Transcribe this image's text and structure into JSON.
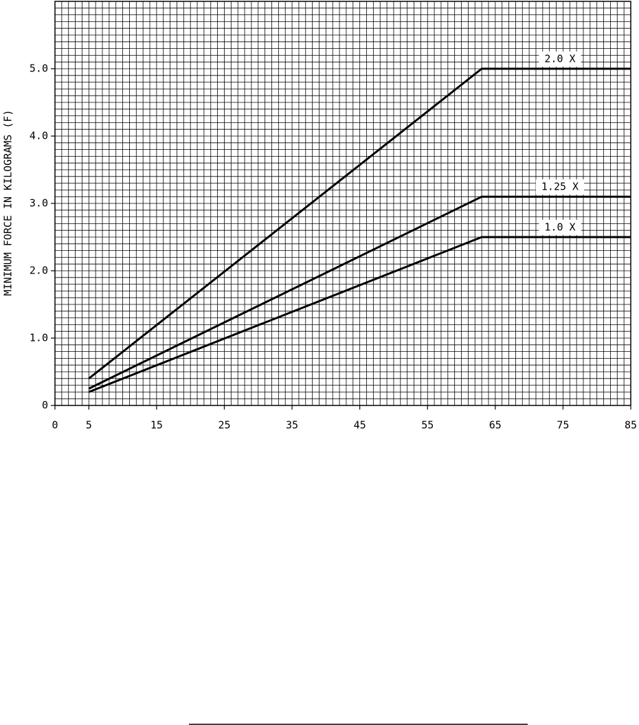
{
  "chart_data": {
    "type": "line",
    "y_label": "MINIMUM FORCE IN KILOGRAMS (F)",
    "x": [
      5,
      63,
      85
    ],
    "series": [
      {
        "name": "2.0 X",
        "color": "#000000",
        "values": [
          0.4,
          5.0,
          5.0
        ]
      },
      {
        "name": "1.25 X",
        "color": "#000000",
        "values": [
          0.25,
          3.1,
          3.1
        ]
      },
      {
        "name": "1.0 X",
        "color": "#000000",
        "values": [
          0.2,
          2.5,
          2.5
        ]
      }
    ],
    "xlim": [
      0,
      85
    ],
    "xticks": [
      0,
      5,
      15,
      25,
      35,
      45,
      55,
      65,
      75,
      85
    ],
    "ylim": [
      0,
      6
    ],
    "yticks": [
      0,
      {
        "value": 1,
        "label": "1.0"
      },
      {
        "value": 2,
        "label": "2.0"
      },
      {
        "value": 3,
        "label": "3.0"
      },
      {
        "value": 4,
        "label": "4.0"
      },
      {
        "value": 5,
        "label": "5.0"
      }
    ],
    "grid": true
  }
}
